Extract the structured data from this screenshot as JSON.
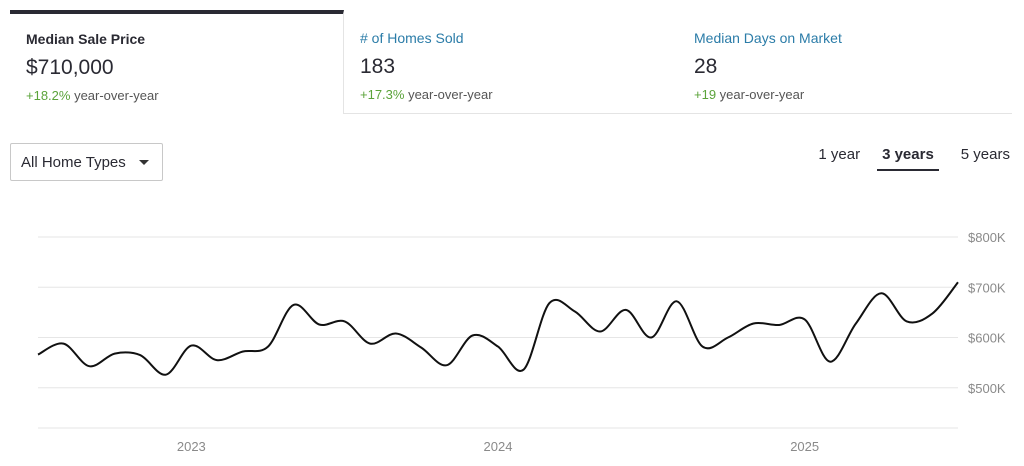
{
  "tabs": [
    {
      "title": "Median Sale Price",
      "value": "$710,000",
      "change": "+18.2%",
      "change_suffix": " year-over-year",
      "active": true
    },
    {
      "title": "# of Homes Sold",
      "value": "183",
      "change": "+17.3%",
      "change_suffix": " year-over-year",
      "active": false
    },
    {
      "title": "Median Days on Market",
      "value": "28",
      "change": "+19",
      "change_suffix": " year-over-year",
      "active": false
    }
  ],
  "filter": {
    "selected": "All Home Types",
    "icon": "chevron-down-icon"
  },
  "ranges": [
    {
      "label": "1 year",
      "active": false
    },
    {
      "label": "3 years",
      "active": true
    },
    {
      "label": "5 years",
      "active": false
    }
  ],
  "colors": {
    "positive": "#5ba33a",
    "link": "#2b7ca8",
    "line": "#111111"
  },
  "chart_data": {
    "type": "line",
    "y_ticks": [
      {
        "value": 500000,
        "label": "$500K"
      },
      {
        "value": 600000,
        "label": "$600K"
      },
      {
        "value": 700000,
        "label": "$700K"
      },
      {
        "value": 800000,
        "label": "$800K"
      }
    ],
    "ylim": [
      420000,
      800000
    ],
    "x_ticks": [
      {
        "value": 2023.0,
        "label": "2023"
      },
      {
        "value": 2024.0,
        "label": "2024"
      },
      {
        "value": 2025.0,
        "label": "2025"
      }
    ],
    "xlim": [
      2022.5,
      2025.5
    ],
    "grid": true,
    "series": [
      {
        "values": [
          [
            2022.5,
            566000
          ],
          [
            2022.583,
            588000
          ],
          [
            2022.667,
            543000
          ],
          [
            2022.75,
            568000
          ],
          [
            2022.833,
            565000
          ],
          [
            2022.917,
            526000
          ],
          [
            2023.0,
            584000
          ],
          [
            2023.083,
            555000
          ],
          [
            2023.167,
            572000
          ],
          [
            2023.25,
            582000
          ],
          [
            2023.333,
            665000
          ],
          [
            2023.417,
            626000
          ],
          [
            2023.5,
            632000
          ],
          [
            2023.583,
            588000
          ],
          [
            2023.667,
            608000
          ],
          [
            2023.75,
            580000
          ],
          [
            2023.833,
            545000
          ],
          [
            2023.917,
            604000
          ],
          [
            2024.0,
            582000
          ],
          [
            2024.083,
            536000
          ],
          [
            2024.167,
            668000
          ],
          [
            2024.25,
            652000
          ],
          [
            2024.333,
            612000
          ],
          [
            2024.417,
            655000
          ],
          [
            2024.5,
            600000
          ],
          [
            2024.583,
            672000
          ],
          [
            2024.667,
            582000
          ],
          [
            2024.75,
            600000
          ],
          [
            2024.833,
            628000
          ],
          [
            2024.917,
            625000
          ],
          [
            2025.0,
            636000
          ],
          [
            2025.083,
            552000
          ],
          [
            2025.167,
            628000
          ],
          [
            2025.25,
            688000
          ],
          [
            2025.333,
            632000
          ],
          [
            2025.417,
            648000
          ],
          [
            2025.5,
            710000
          ]
        ]
      }
    ]
  }
}
